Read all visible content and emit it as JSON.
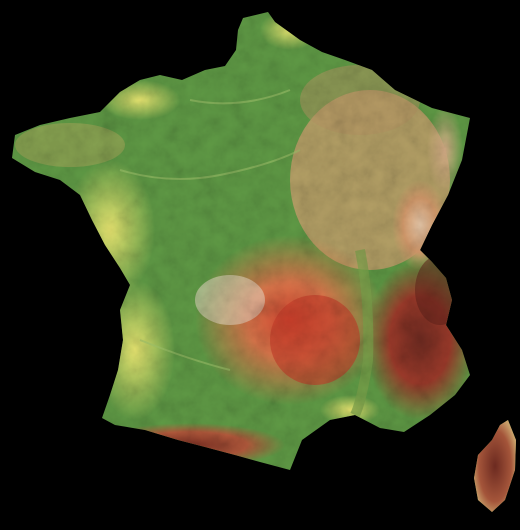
{
  "map": {
    "background_color": "#000000",
    "elevation_palette": {
      "lowland_green": "#5f9a45",
      "coastal_yellow": "#e4e26a",
      "hill_tan": "#c79a6a",
      "plateau_orange": "#d98a52",
      "mountain_red": "#c9412f",
      "alpine_dark_red": "#7a2e22",
      "high_peak_white": "#efe6d8"
    },
    "regions": [
      {
        "name": "mainland-france"
      },
      {
        "name": "corsica"
      }
    ]
  }
}
